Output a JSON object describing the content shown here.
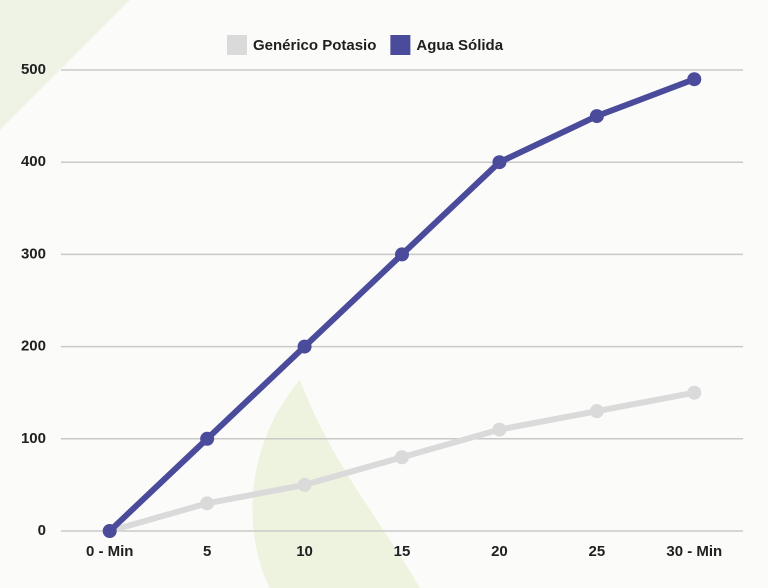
{
  "chart_data": {
    "type": "line",
    "categories": [
      "0 - Min",
      "5",
      "10",
      "15",
      "20",
      "25",
      "30 - Min"
    ],
    "series": [
      {
        "name": "Genérico Potasio",
        "color": "#dadada",
        "values": [
          0,
          30,
          50,
          80,
          110,
          130,
          150
        ]
      },
      {
        "name": "Agua Sólida",
        "color": "#4a4b9b",
        "values": [
          0,
          100,
          200,
          300,
          400,
          450,
          490
        ]
      }
    ],
    "ylim": [
      0,
      500
    ],
    "yticks": [
      0,
      100,
      200,
      300,
      400,
      500
    ],
    "grid": true,
    "legend": "top"
  }
}
